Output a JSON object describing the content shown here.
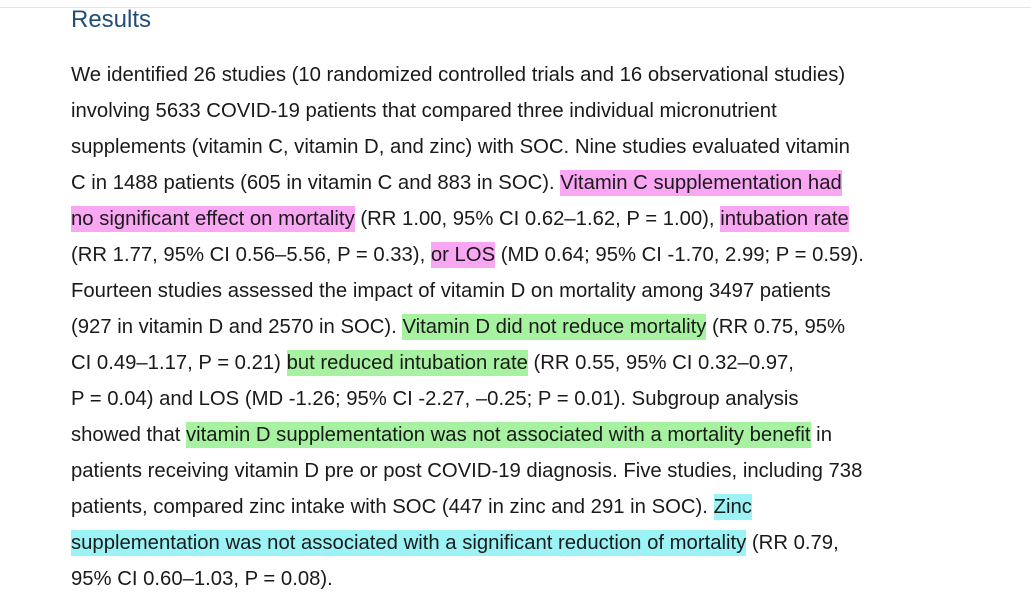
{
  "section": {
    "heading": "Results"
  },
  "paragraph": {
    "highlight_colors": {
      "vitamin_c": "#f9a6f3",
      "vitamin_d": "#a6f2a0",
      "zinc": "#9cf3f6"
    },
    "l01": "We identified 26 studies (10 randomized controlled trials and 16 observational studies)",
    "l02": "involving 5633 COVID-19 patients that compared three individual micronutrient",
    "l03": "supplements (vitamin C, vitamin D, and zinc) with SOC. Nine studies evaluated vitamin",
    "l04a": "C in 1488 patients (605 in vitamin C and 883 in SOC). ",
    "l04b": "Vitamin C supplementation had",
    "l05a": "no significant effect on mortality",
    "l05b": " (RR 1.00, 95% CI 0.62–1.62, P = 1.00), ",
    "l05c": "intubation rate",
    "l06a": "(RR 1.77, 95% CI 0.56–5.56, P = 0.33), ",
    "l06b": "or LOS",
    "l06c": " (MD 0.64; 95% CI -1.70, 2.99; P = 0.59).",
    "l07": "Fourteen studies assessed the impact of vitamin D on mortality among 3497 patients",
    "l08a": "(927 in vitamin D and 2570 in SOC). ",
    "l08b": "Vitamin D did not reduce mortality",
    "l08c": " (RR 0.75, 95%",
    "l09a": "CI 0.49–1.17, P = 0.21) ",
    "l09b": "but reduced intubation rate",
    "l09c": " (RR 0.55, 95% CI 0.32–0.97,",
    "l10": "P = 0.04) and LOS (MD -1.26; 95% CI -2.27, –0.25; P = 0.01). Subgroup analysis",
    "l11a": "showed that ",
    "l11b": "vitamin D supplementation was not associated with a mortality benefit",
    "l11c": " in",
    "l12": "patients receiving vitamin D pre or post COVID-19 diagnosis. Five studies, including 738",
    "l13a": "patients, compared zinc intake with SOC (447 in zinc and 291 in SOC). ",
    "l13b": "Zinc",
    "l14a": "supplementation was not associated with a significant reduction of mortality",
    "l14b": " (RR 0.79,",
    "l15": "95% CI 0.60–1.03, P = 0.08)."
  }
}
